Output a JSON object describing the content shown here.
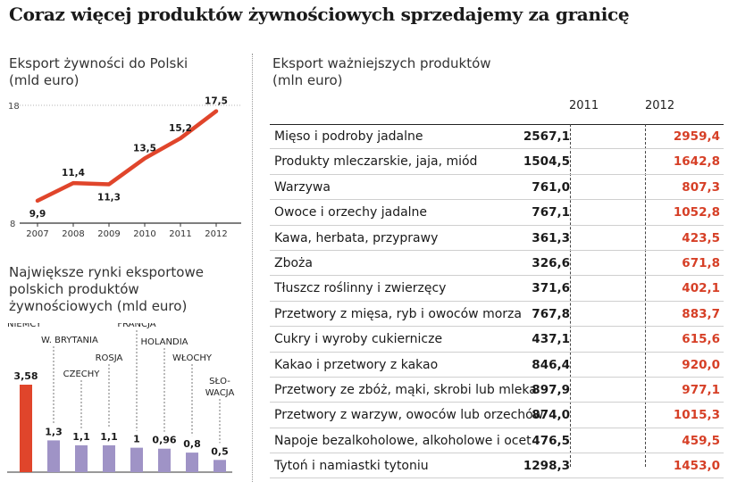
{
  "title": "Coraz więcej produktów żywnościowych sprzedajemy za granicę",
  "colors": {
    "accent": "#e0452b",
    "bar_secondary": "#9f93c6",
    "value_red": "#d63f26"
  },
  "chart_data": [
    {
      "type": "line",
      "title": "Eksport żywności do Polski",
      "subtitle": "(mld euro)",
      "x": [
        "2007",
        "2008",
        "2009",
        "2010",
        "2011",
        "2012"
      ],
      "series": [
        {
          "values": [
            9.9,
            11.4,
            11.3,
            13.5,
            15.2,
            17.5
          ]
        }
      ],
      "data_labels": [
        "9,9",
        "11,4",
        "11,3",
        "13,5",
        "15,2",
        "17,5"
      ],
      "ylim": [
        8,
        18
      ],
      "yticks": [
        "8",
        "18"
      ]
    },
    {
      "type": "bar",
      "title": "Największe rynki eksportowe polskich produktów żywnościowych (mld euro)",
      "categories": [
        "NIEMCY",
        "W. BRYTANIA",
        "CZECHY",
        "ROSJA",
        "FRANCJA",
        "HOLANDIA",
        "WŁOCHY",
        "SŁO-WACJA"
      ],
      "category_lines": [
        [
          "NIEMCY"
        ],
        [
          "W. BRYTANIA"
        ],
        [
          "CZECHY"
        ],
        [
          "ROSJA"
        ],
        [
          "FRANCJA"
        ],
        [
          "HOLANDIA"
        ],
        [
          "WŁOCHY"
        ],
        [
          "SŁO-",
          "WACJA"
        ]
      ],
      "values": [
        3.58,
        1.3,
        1.1,
        1.1,
        1.0,
        0.96,
        0.8,
        0.5
      ],
      "data_labels": [
        "3,58",
        "1,3",
        "1,1",
        "1,1",
        "1",
        "0,96",
        "0,8",
        "0,5"
      ],
      "ylim": [
        0,
        4
      ]
    },
    {
      "type": "table",
      "title": "Eksport ważniejszych produktów",
      "subtitle": "(mln euro)",
      "columns": [
        "2011",
        "2012"
      ],
      "rows": [
        {
          "name": "Mięso i podroby jadalne",
          "v2011": "2567,1",
          "v2012": "2959,4"
        },
        {
          "name": "Produkty mleczarskie, jaja, miód",
          "v2011": "1504,5",
          "v2012": "1642,8"
        },
        {
          "name": "Warzywa",
          "v2011": "761,0",
          "v2012": "807,3"
        },
        {
          "name": "Owoce i orzechy jadalne",
          "v2011": "767,1",
          "v2012": "1052,8"
        },
        {
          "name": "Kawa, herbata, przyprawy",
          "v2011": "361,3",
          "v2012": "423,5"
        },
        {
          "name": "Zboża",
          "v2011": "326,6",
          "v2012": "671,8"
        },
        {
          "name": "Tłuszcz roślinny i zwierzęcy",
          "v2011": "371,6",
          "v2012": "402,1"
        },
        {
          "name": "Przetwory z mięsa, ryb i owoców morza",
          "v2011": "767,8",
          "v2012": "883,7"
        },
        {
          "name": "Cukry i wyroby cukiernicze",
          "v2011": "437,1",
          "v2012": "615,6"
        },
        {
          "name": "Kakao i przetwory z kakao",
          "v2011": "846,4",
          "v2012": "920,0"
        },
        {
          "name": "Przetwory ze zbóż, mąki, skrobi lub mleka",
          "v2011": "897,9",
          "v2012": "977,1"
        },
        {
          "name": "Przetwory z warzyw, owoców lub orzechów",
          "v2011": "874,0",
          "v2012": "1015,3"
        },
        {
          "name": "Napoje bezalkoholowe, alkoholowe i ocet",
          "v2011": "476,5",
          "v2012": "459,5"
        },
        {
          "name": "Tytoń i namiastki tytoniu",
          "v2011": "1298,3",
          "v2012": "1453,0"
        }
      ]
    }
  ]
}
